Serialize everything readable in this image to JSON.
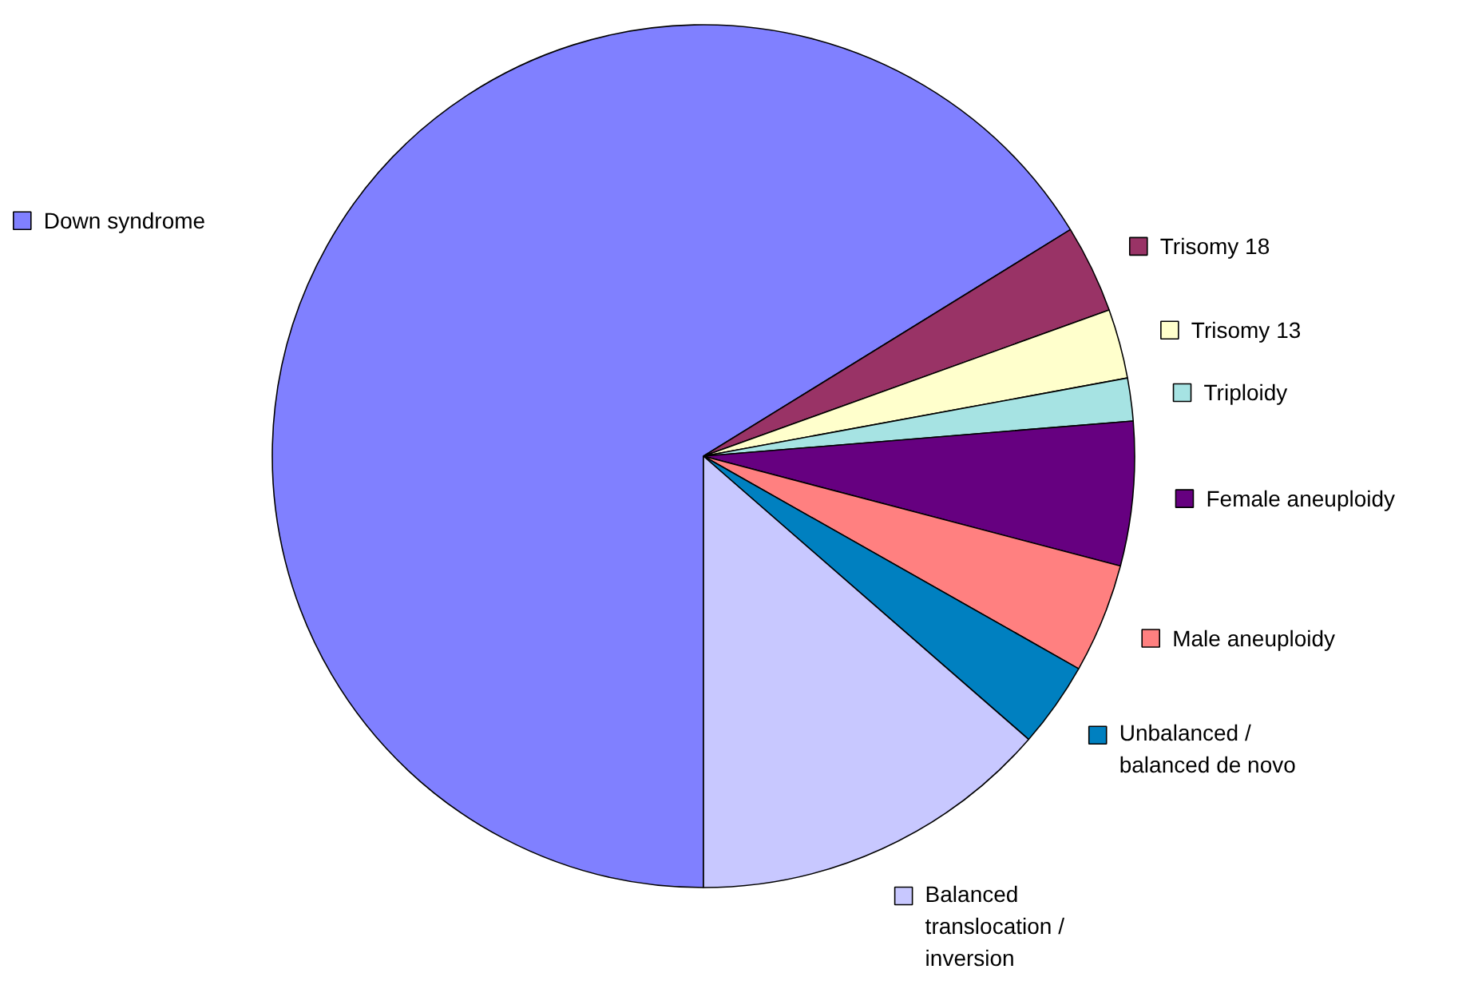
{
  "chart_data": {
    "type": "pie",
    "categories": [
      "Down syndrome",
      "Trisomy 18",
      "Trisomy 13",
      "Triploidy",
      "Female aneuploidy",
      "Male aneuploidy",
      "Unbalanced / balanced de novo",
      "Balanced translocation / inversion"
    ],
    "values": [
      66.2,
      3.3,
      2.6,
      1.6,
      5.4,
      4.1,
      3.2,
      13.6
    ],
    "colors": [
      "#8080ff",
      "#993366",
      "#ffffcc",
      "#a6e3e3",
      "#660080",
      "#ff8080",
      "#0080c0",
      "#c8c8ff"
    ],
    "legend": "right"
  }
}
